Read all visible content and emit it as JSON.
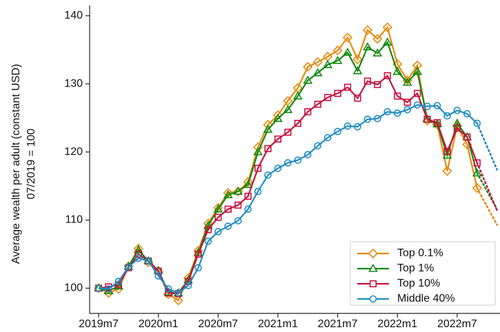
{
  "chart_data": {
    "type": "line",
    "y_label_lines": [
      "Average wealth per adult (constant USD)",
      "07/2019 = 100"
    ],
    "x": [
      0,
      1,
      2,
      3,
      4,
      5,
      6,
      7,
      8,
      9,
      10,
      11,
      12,
      13,
      14,
      15,
      16,
      17,
      18,
      19,
      20,
      21,
      22,
      23,
      24,
      25,
      26,
      27,
      28,
      29,
      30,
      31,
      32,
      33,
      34,
      35,
      36,
      37,
      38,
      39,
      40
    ],
    "xlim": [
      -0.9,
      40.3
    ],
    "xticks": [
      {
        "value": 0,
        "label": "2019m7"
      },
      {
        "value": 6,
        "label": "2020m1"
      },
      {
        "value": 12,
        "label": "2020m7"
      },
      {
        "value": 18,
        "label": "2021m1"
      },
      {
        "value": 24,
        "label": "2021m7"
      },
      {
        "value": 30,
        "label": "2022m1"
      },
      {
        "value": 36,
        "label": "2022m7"
      }
    ],
    "ylim": [
      96.3,
      141.5
    ],
    "yticks": [
      100,
      110,
      120,
      130,
      140
    ],
    "grid": false,
    "dotted_from_x": 38,
    "legend": "bottom-right",
    "series": [
      {
        "name": "Top 0.1%",
        "color": "#e8890c",
        "marker": "diamond",
        "values": [
          100,
          99.3,
          99.9,
          103.2,
          105.8,
          103.8,
          102.4,
          99.1,
          98.2,
          101.5,
          105.5,
          109.5,
          111.8,
          114.0,
          114.2,
          115.6,
          120.7,
          124.0,
          125.4,
          127.5,
          129.4,
          132.5,
          133.2,
          134.0,
          134.9,
          136.8,
          133.6,
          137.9,
          136.6,
          138.3,
          132.9,
          130.5,
          132.7,
          124.6,
          124.0,
          117.2,
          123.8,
          121.1,
          114.7,
          null,
          109.3
        ]
      },
      {
        "name": "Top 1%",
        "color": "#118a11",
        "marker": "triangle",
        "values": [
          100,
          99.6,
          100.3,
          103.2,
          105.6,
          104.0,
          102.6,
          99.4,
          99.3,
          101.2,
          105.2,
          109.2,
          111.6,
          113.7,
          114.2,
          115.2,
          120.0,
          123.3,
          124.9,
          126.2,
          128.2,
          130.5,
          131.6,
          132.8,
          133.4,
          134.6,
          131.9,
          135.4,
          134.5,
          136.1,
          131.8,
          130.2,
          131.8,
          124.8,
          124.1,
          119.5,
          124.2,
          122.2,
          116.9,
          null,
          111.6
        ]
      },
      {
        "name": "Top 10%",
        "color": "#c8103e",
        "marker": "square",
        "values": [
          100,
          100.2,
          100.5,
          103.0,
          105.0,
          104.0,
          102.5,
          99.3,
          99.2,
          101.0,
          105.0,
          108.6,
          110.4,
          111.6,
          112.2,
          113.5,
          117.6,
          120.5,
          121.9,
          122.9,
          124.2,
          125.9,
          127.0,
          128.0,
          128.6,
          129.5,
          127.9,
          130.4,
          129.9,
          131.2,
          128.2,
          127.3,
          128.6,
          124.8,
          124.3,
          120.1,
          123.5,
          122.2,
          118.4,
          null,
          111.4
        ]
      },
      {
        "name": "Middle 40%",
        "color": "#1f8cc4",
        "marker": "circle",
        "values": [
          100,
          99.9,
          101.0,
          103.1,
          104.4,
          104.0,
          101.8,
          99.9,
          99.3,
          100.4,
          103.0,
          106.9,
          108.3,
          109.1,
          109.9,
          111.6,
          114.2,
          116.6,
          117.6,
          118.4,
          118.8,
          119.6,
          120.9,
          122.1,
          123.0,
          123.8,
          123.7,
          124.8,
          124.9,
          125.9,
          125.7,
          126.2,
          126.9,
          126.7,
          126.8,
          125.3,
          126.1,
          125.6,
          124.2,
          null,
          117.4
        ]
      }
    ]
  }
}
